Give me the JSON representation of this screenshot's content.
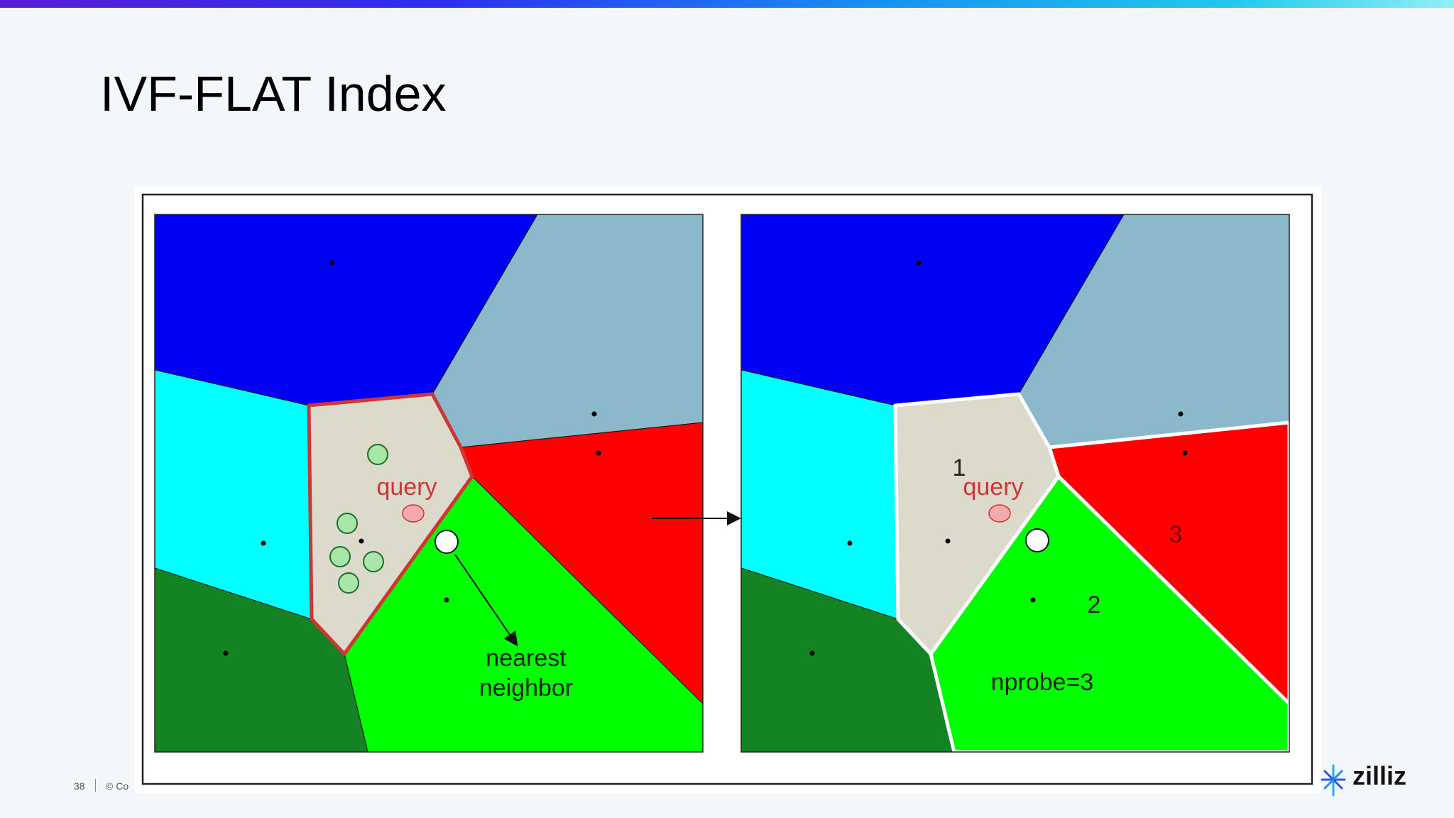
{
  "slide": {
    "title": "IVF-FLAT Index",
    "page_number": "38",
    "copyright": "© Co"
  },
  "brand": {
    "logo_text": "zilliz",
    "logo_icon": "zilliz-star-icon",
    "accent_gradient": [
      "#5a1fd6",
      "#2d2ff0",
      "#1790f2",
      "#22c8f0",
      "#8ff0f4"
    ]
  },
  "diagram": {
    "left_panel": {
      "query_label": "query",
      "neighbor_label_line1": "nearest",
      "neighbor_label_line2": "neighbor"
    },
    "right_panel": {
      "query_label": "query",
      "cell_label_1": "1",
      "cell_label_2": "2",
      "cell_label_3": "3",
      "nprobe_label": "nprobe=3"
    },
    "colors": {
      "cell_blue": "#0000f5",
      "cell_slate": "#8bb9cb",
      "cell_cyan": "#00ffff",
      "cell_beige": "#dcdacb",
      "cell_red": "#ff0000",
      "cell_green": "#00ff00",
      "cell_darkgreen": "#138324",
      "highlight_border": "#d03535",
      "query_point": "#f3a9ae"
    }
  }
}
